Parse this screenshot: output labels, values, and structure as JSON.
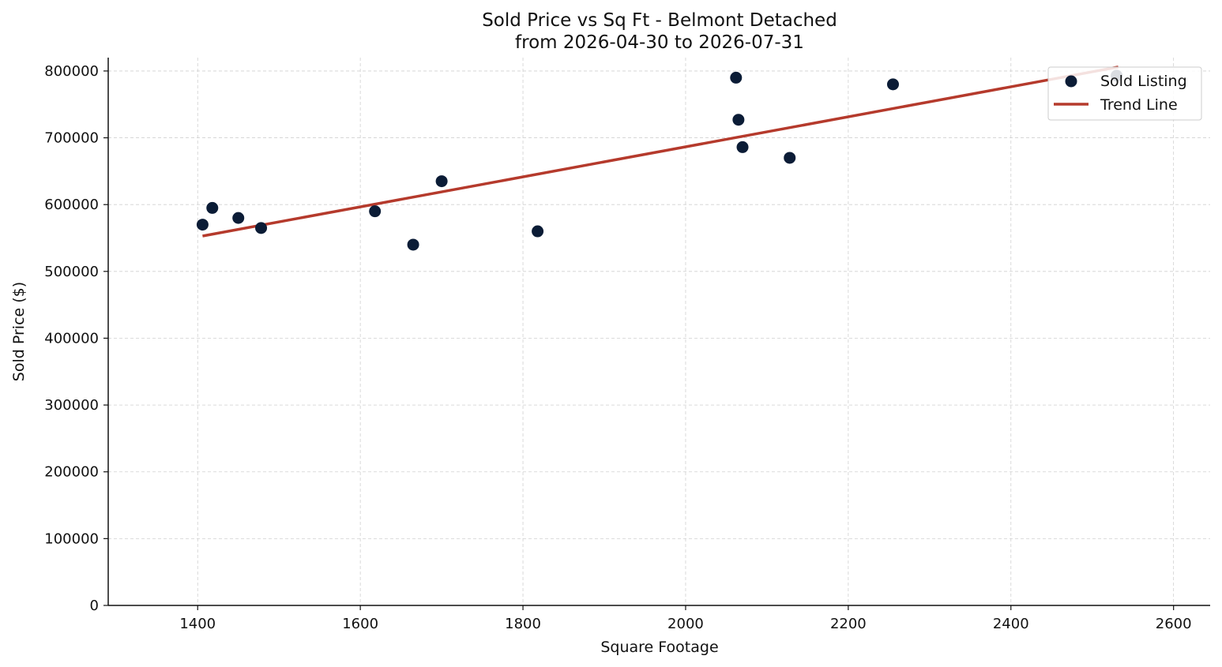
{
  "chart_data": {
    "type": "scatter",
    "title": "Sold Price vs Sq Ft - Belmont Detached",
    "subtitle": "from 2026-04-30 to 2026-07-31",
    "xlabel": "Square Footage",
    "ylabel": "Sold Price ($)",
    "xlim": [
      1290,
      2645
    ],
    "ylim": [
      0,
      820000
    ],
    "xticks": [
      1400,
      1600,
      1800,
      2000,
      2200,
      2400,
      2600
    ],
    "yticks": [
      0,
      100000,
      200000,
      300000,
      400000,
      500000,
      600000,
      700000,
      800000
    ],
    "xtick_labels": [
      "1400",
      "1600",
      "1800",
      "2000",
      "2200",
      "2400",
      "2600"
    ],
    "ytick_labels": [
      "0",
      "100000",
      "200000",
      "300000",
      "400000",
      "500000",
      "600000",
      "700000",
      "800000"
    ],
    "grid": true,
    "legend_position": "top-right",
    "series": [
      {
        "name": "Sold Listing",
        "kind": "scatter",
        "color": "#0b1c36",
        "x": [
          1406,
          1418,
          1450,
          1478,
          1618,
          1665,
          1700,
          1818,
          2062,
          2065,
          2070,
          2128,
          2255,
          2530
        ],
        "y": [
          570000,
          595000,
          580000,
          565000,
          590000,
          540000,
          635000,
          560000,
          790000,
          727000,
          686000,
          670000,
          780000,
          793000
        ]
      },
      {
        "name": "Trend Line",
        "kind": "line",
        "color": "#b53a2c",
        "x": [
          1406,
          2532
        ],
        "y": [
          553000,
          806000
        ]
      }
    ],
    "legend": [
      "Sold Listing",
      "Trend Line"
    ]
  }
}
